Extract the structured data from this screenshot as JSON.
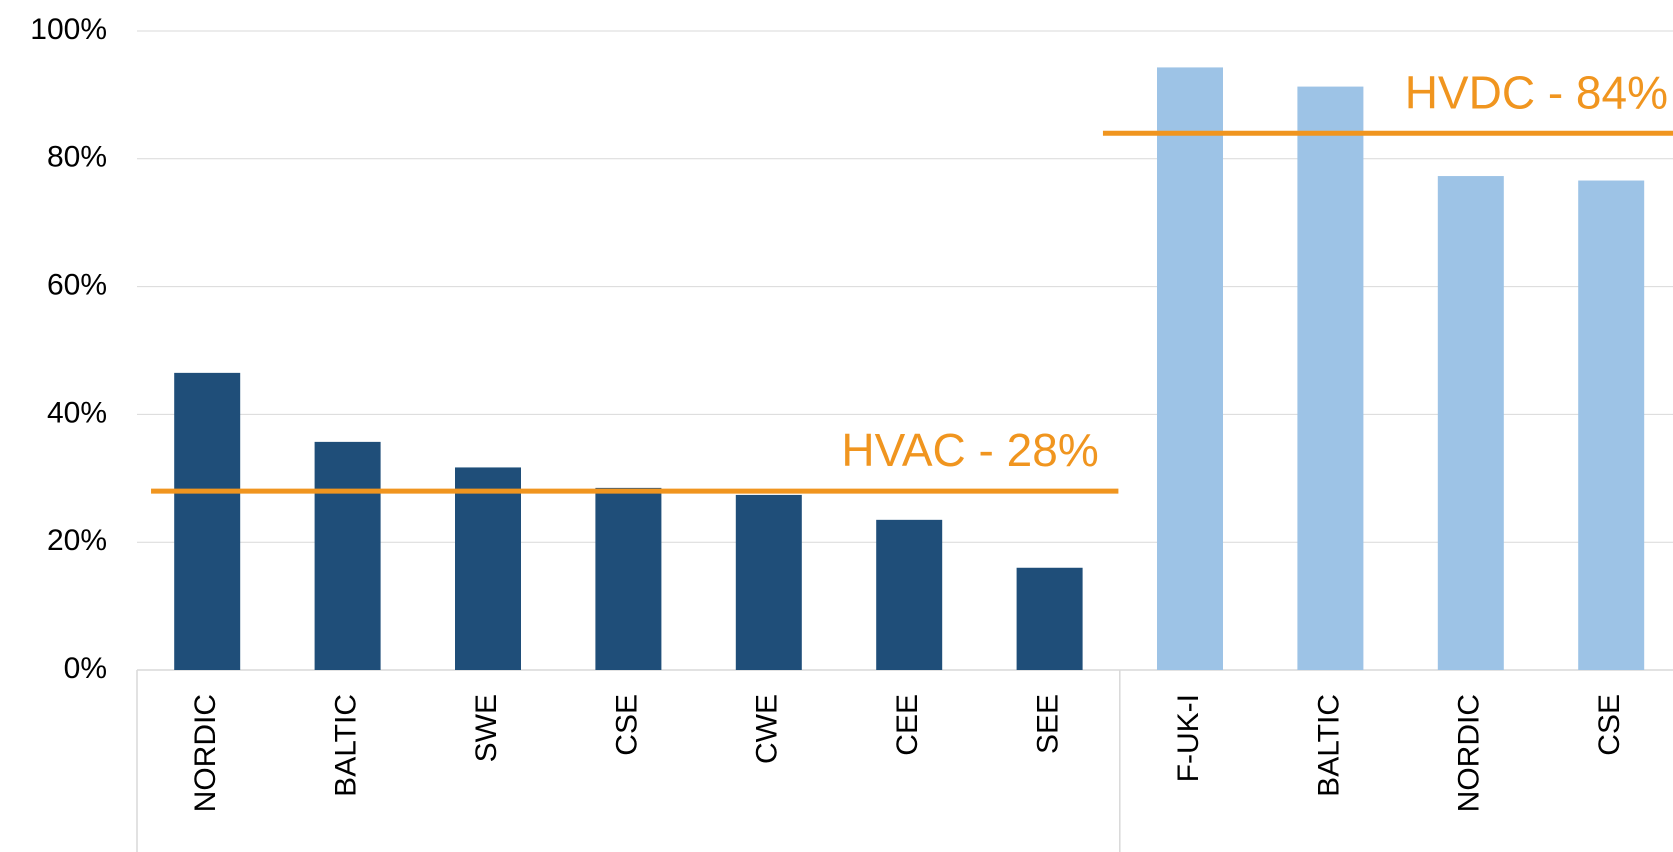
{
  "chart_data": {
    "type": "bar",
    "categories": [
      "NORDIC",
      "BALTIC",
      "SWE",
      "CSE",
      "CWE",
      "CEE",
      "SEE",
      "F-UK-I",
      "BALTIC",
      "NORDIC",
      "CSE"
    ],
    "values": [
      46.5,
      35.7,
      31.7,
      28.5,
      27.4,
      23.5,
      16.0,
      94.3,
      91.3,
      77.3,
      76.6
    ],
    "colors": [
      "#1f4e79",
      "#1f4e79",
      "#1f4e79",
      "#1f4e79",
      "#1f4e79",
      "#1f4e79",
      "#1f4e79",
      "#9dc3e6",
      "#9dc3e6",
      "#9dc3e6",
      "#9dc3e6"
    ],
    "ylim": [
      0,
      100
    ],
    "yticks": [
      {
        "value": 0,
        "label": "0%"
      },
      {
        "value": 20,
        "label": "20%"
      },
      {
        "value": 40,
        "label": "40%"
      },
      {
        "value": 60,
        "label": "60%"
      },
      {
        "value": 80,
        "label": "80%"
      },
      {
        "value": 100,
        "label": "100%"
      }
    ],
    "grid": true,
    "reference_lines": [
      {
        "value": 28,
        "label": "HVAC - 28%",
        "color": "#f0951f"
      },
      {
        "value": 84,
        "label": "HVDC - 84%",
        "color": "#f0951f"
      }
    ]
  }
}
